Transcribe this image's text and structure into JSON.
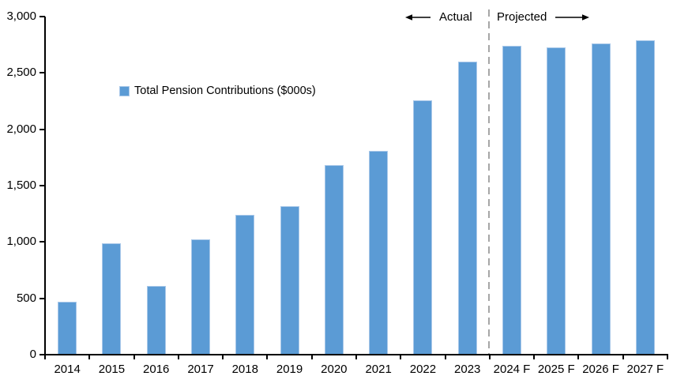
{
  "chart_data": {
    "type": "bar",
    "title": "",
    "xlabel": "",
    "ylabel": "",
    "legend": [
      "Total Pension Contributions ($000s)"
    ],
    "legend_position": "inside-upper-left",
    "categories": [
      "2014",
      "2015",
      "2016",
      "2017",
      "2018",
      "2019",
      "2020",
      "2021",
      "2022",
      "2023",
      "2024 F",
      "2025 F",
      "2026 F",
      "2027 F"
    ],
    "values": [
      470,
      990,
      610,
      1020,
      1240,
      1320,
      1680,
      1810,
      2260,
      2600,
      2740,
      2730,
      2760,
      2790
    ],
    "ylim": [
      0,
      3000
    ],
    "ytick_interval": 500,
    "ytick_labels": [
      "0",
      "500",
      "1,000",
      "1,500",
      "2,000",
      "2,500",
      "3,000"
    ],
    "grid": false,
    "bar_color": "#5B9BD5",
    "bar_border_color": "#A9C8E9",
    "axis_color": "#000000",
    "divider": {
      "after_category": "2023",
      "style": "dashed",
      "color": "#A6A6A6"
    },
    "annotations": [
      {
        "text": "Actual",
        "side": "left-of-divider",
        "arrow": "left"
      },
      {
        "text": "Projected",
        "side": "right-of-divider",
        "arrow": "right"
      }
    ]
  }
}
